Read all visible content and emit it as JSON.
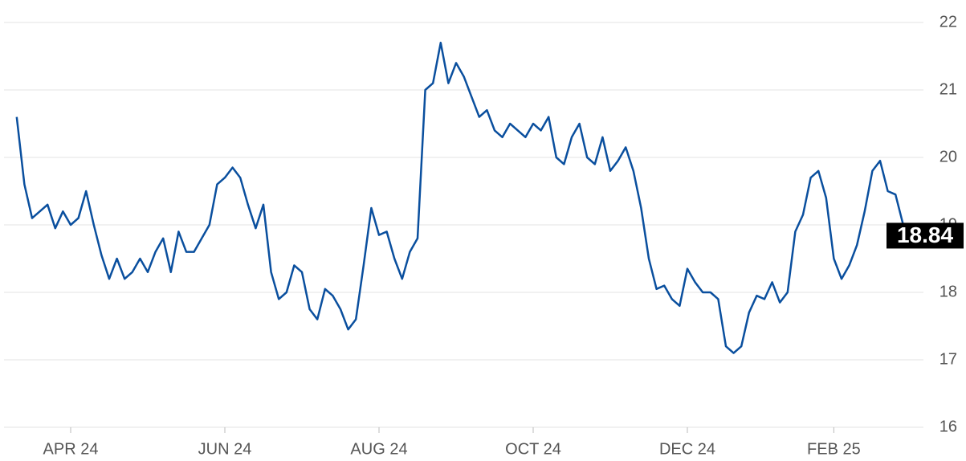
{
  "chart_data": {
    "type": "line",
    "categories": [
      null,
      null,
      null,
      null,
      null,
      null,
      null,
      "APR 24",
      null,
      null,
      null,
      null,
      null,
      null,
      null,
      null,
      null,
      null,
      null,
      null,
      null,
      null,
      null,
      null,
      null,
      null,
      null,
      "JUN 24",
      null,
      null,
      null,
      null,
      null,
      null,
      null,
      null,
      null,
      null,
      null,
      null,
      null,
      null,
      null,
      null,
      null,
      null,
      null,
      "AUG 24",
      null,
      null,
      null,
      null,
      null,
      null,
      null,
      null,
      null,
      null,
      null,
      null,
      null,
      null,
      null,
      null,
      null,
      null,
      null,
      "OCT 24",
      null,
      null,
      null,
      null,
      null,
      null,
      null,
      null,
      null,
      null,
      null,
      null,
      null,
      null,
      null,
      null,
      null,
      null,
      null,
      "DEC 24",
      null,
      null,
      null,
      null,
      null,
      null,
      null,
      null,
      null,
      null,
      null,
      null,
      null,
      null,
      null,
      null,
      null,
      null,
      "FEB 25",
      null,
      null,
      null,
      null,
      null,
      null,
      null,
      null,
      null,
      null,
      null
    ],
    "series": [
      {
        "color": "#0a4f9e",
        "values": [
          20.6,
          19.6,
          19.1,
          19.2,
          19.3,
          18.95,
          19.2,
          19.0,
          19.1,
          19.5,
          19.0,
          18.55,
          18.2,
          18.5,
          18.2,
          18.3,
          18.5,
          18.3,
          18.6,
          18.8,
          18.3,
          18.9,
          18.6,
          18.6,
          18.8,
          19.0,
          19.6,
          19.7,
          19.85,
          19.7,
          19.3,
          18.95,
          19.3,
          18.3,
          17.9,
          18.0,
          18.4,
          18.3,
          17.75,
          17.6,
          18.05,
          17.95,
          17.75,
          17.45,
          17.6,
          18.4,
          19.25,
          18.85,
          18.9,
          18.5,
          18.2,
          18.6,
          18.8,
          21.0,
          21.1,
          21.7,
          21.1,
          21.4,
          21.2,
          20.9,
          20.6,
          20.7,
          20.4,
          20.3,
          20.5,
          20.4,
          20.3,
          20.5,
          20.4,
          20.6,
          20.0,
          19.9,
          20.3,
          20.5,
          20.0,
          19.9,
          20.3,
          19.8,
          19.95,
          20.15,
          19.8,
          19.25,
          18.5,
          18.05,
          18.1,
          17.9,
          17.8,
          18.35,
          18.15,
          18.0,
          18.0,
          17.9,
          17.2,
          17.1,
          17.2,
          17.7,
          17.95,
          17.9,
          18.15,
          17.85,
          18.0,
          18.9,
          19.15,
          19.7,
          19.8,
          19.4,
          18.5,
          18.2,
          18.4,
          18.7,
          19.2,
          19.8,
          19.95,
          19.5,
          19.45,
          19.0,
          18.9,
          18.84
        ]
      }
    ],
    "ylim": [
      16,
      22
    ],
    "yticks": [
      16,
      17,
      18,
      19,
      20,
      21,
      22
    ],
    "grid": true
  }
}
